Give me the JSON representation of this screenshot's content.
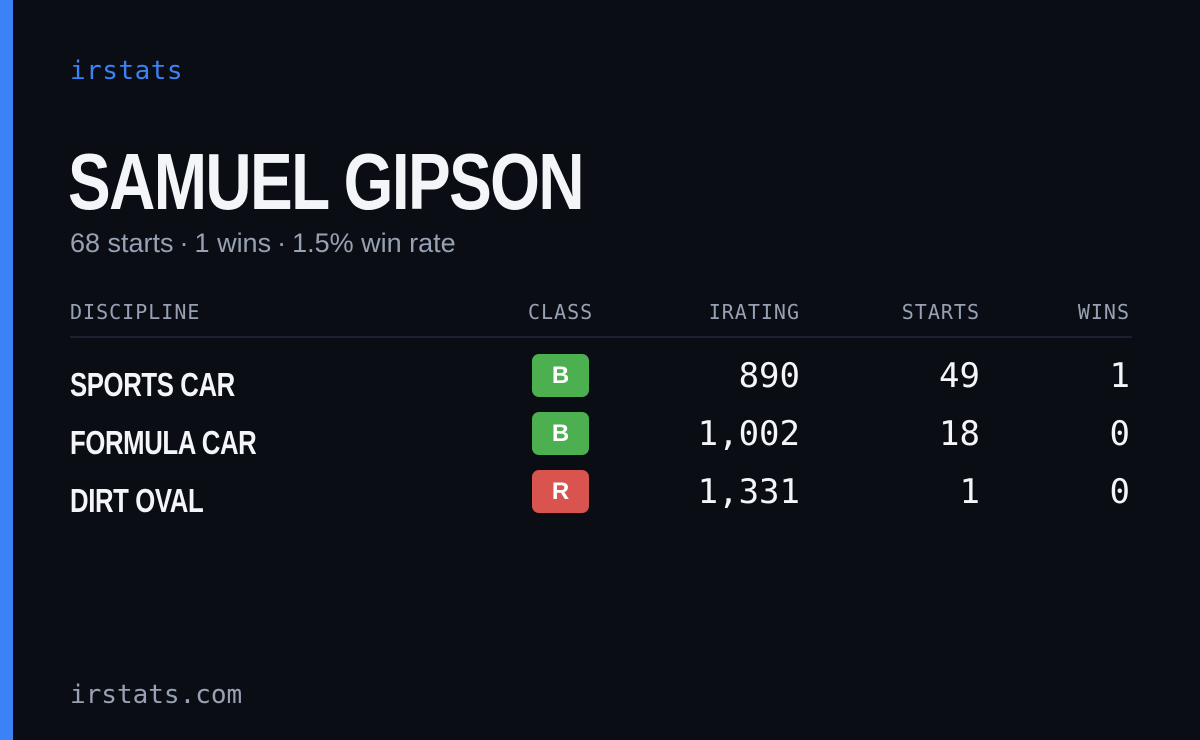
{
  "brand": "irstats",
  "driver": {
    "name": "SAMUEL GIPSON",
    "starts_text": "68 starts",
    "wins_text": "1 wins",
    "winrate_text": "1.5% win rate",
    "separator": "·"
  },
  "table": {
    "headers": {
      "discipline": "DISCIPLINE",
      "class": "CLASS",
      "irating": "IRATING",
      "starts": "STARTS",
      "wins": "WINS"
    },
    "rows": [
      {
        "discipline": "SPORTS CAR",
        "class": "B",
        "class_color": "#4caf50",
        "irating": "890",
        "starts": "49",
        "wins": "1"
      },
      {
        "discipline": "FORMULA CAR",
        "class": "B",
        "class_color": "#4caf50",
        "irating": "1,002",
        "starts": "18",
        "wins": "0"
      },
      {
        "discipline": "DIRT OVAL",
        "class": "R",
        "class_color": "#d9534f",
        "irating": "1,331",
        "starts": "1",
        "wins": "0"
      }
    ]
  },
  "footer": "irstats.com",
  "colors": {
    "accent": "#3b82f6",
    "background": "#0a0d14",
    "text": "#f4f5f8",
    "muted": "#98a1b3"
  }
}
